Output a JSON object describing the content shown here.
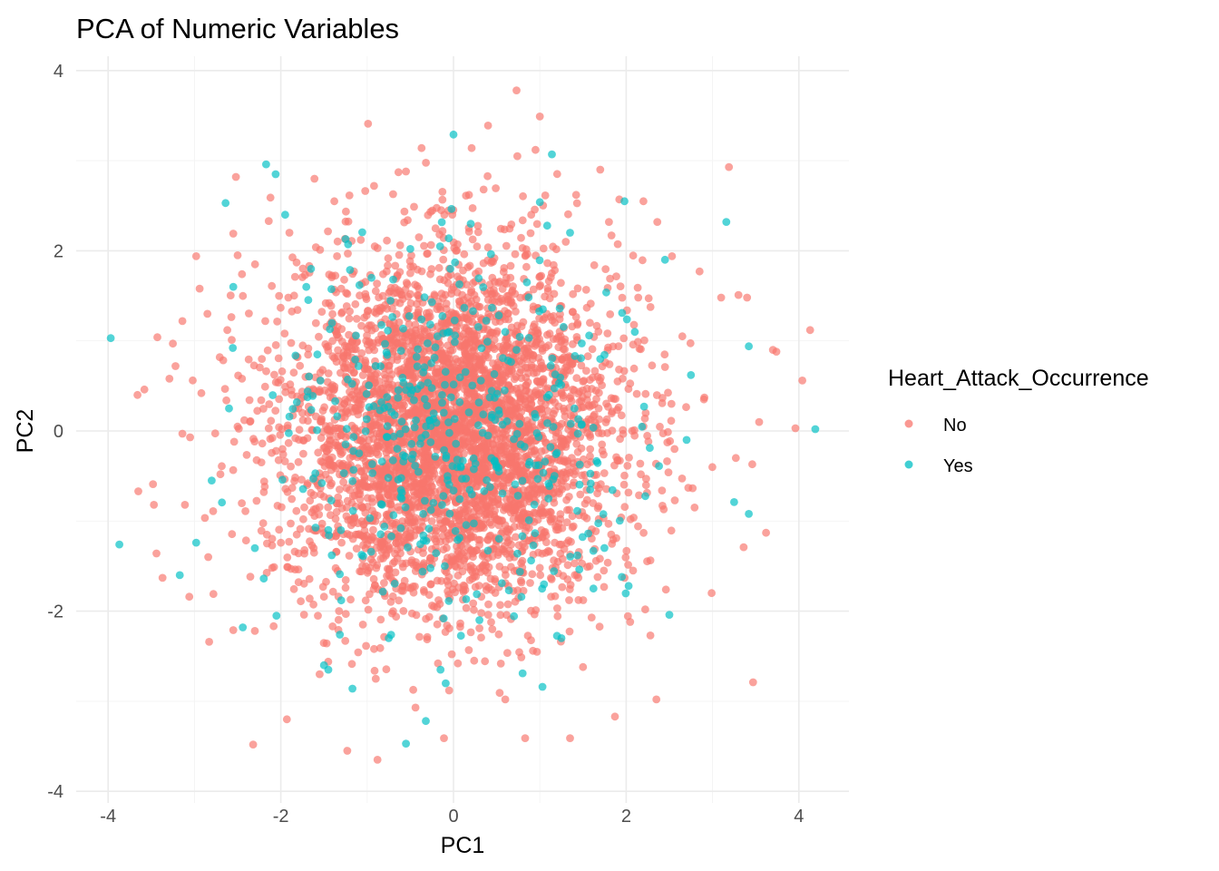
{
  "chart_data": {
    "type": "scatter",
    "title": "PCA of Numeric Variables",
    "xlabel": "PC1",
    "ylabel": "PC2",
    "xlim": [
      -4.2,
      4.6
    ],
    "ylim": [
      -4.1,
      4.2
    ],
    "x_ticks": [
      -4,
      -2,
      0,
      2,
      4
    ],
    "y_ticks": [
      -4,
      -2,
      0,
      2,
      4
    ],
    "grid": true,
    "legend": {
      "title": "Heart_Attack_Occurrence",
      "placement": "right",
      "entries": [
        "No",
        "Yes"
      ]
    },
    "series": [
      {
        "name": "No",
        "color": "#F8766D",
        "points": [
          [
            0.73,
            3.78
          ],
          [
            1.0,
            3.49
          ],
          [
            -0.99,
            3.41
          ],
          [
            0.4,
            3.39
          ],
          [
            0.21,
            3.14
          ],
          [
            0.95,
            3.12
          ],
          [
            0.74,
            3.05
          ],
          [
            -0.37,
            3.14
          ],
          [
            1.7,
            2.9
          ],
          [
            1.92,
            2.57
          ],
          [
            3.19,
            2.93
          ],
          [
            -2.52,
            2.82
          ],
          [
            -1.61,
            2.8
          ],
          [
            -2.12,
            2.59
          ],
          [
            -0.92,
            2.72
          ],
          [
            2.2,
            2.55
          ],
          [
            2.36,
            2.32
          ],
          [
            -2.14,
            2.33
          ],
          [
            -2.55,
            2.19
          ],
          [
            -2.5,
            1.95
          ],
          [
            -2.98,
            1.94
          ],
          [
            -2.94,
            1.58
          ],
          [
            -2.85,
            1.3
          ],
          [
            -3.14,
            1.22
          ],
          [
            -3.25,
            0.97
          ],
          [
            -3.43,
            1.04
          ],
          [
            -3.29,
            0.58
          ],
          [
            -3.22,
            0.72
          ],
          [
            -3.66,
            0.4
          ],
          [
            -3.58,
            0.46
          ],
          [
            -3.05,
            -0.07
          ],
          [
            -3.14,
            -0.03
          ],
          [
            -3.48,
            -0.59
          ],
          [
            -3.65,
            -0.67
          ],
          [
            -3.47,
            -0.82
          ],
          [
            -3.11,
            -0.82
          ],
          [
            -3.44,
            -1.36
          ],
          [
            -3.37,
            -1.63
          ],
          [
            -2.84,
            -1.4
          ],
          [
            -3.06,
            -1.84
          ],
          [
            -2.78,
            -1.81
          ],
          [
            -2.83,
            -2.34
          ],
          [
            -2.55,
            -2.21
          ],
          [
            -2.32,
            -3.48
          ],
          [
            -1.93,
            -3.2
          ],
          [
            -1.23,
            -3.55
          ],
          [
            -0.88,
            -3.65
          ],
          [
            -0.44,
            -3.07
          ],
          [
            -0.11,
            -3.41
          ],
          [
            1.35,
            -3.41
          ],
          [
            0.83,
            -3.41
          ],
          [
            1.87,
            -3.17
          ],
          [
            2.35,
            -2.98
          ],
          [
            3.47,
            -2.79
          ],
          [
            2.99,
            -1.8
          ],
          [
            3.62,
            -1.13
          ],
          [
            3.36,
            -1.29
          ],
          [
            3.27,
            -0.3
          ],
          [
            3.46,
            -0.37
          ],
          [
            3.54,
            0.1
          ],
          [
            3.96,
            0.03
          ],
          [
            4.04,
            0.56
          ],
          [
            3.74,
            0.88
          ],
          [
            3.7,
            0.9
          ],
          [
            4.13,
            1.12
          ],
          [
            3.4,
            1.48
          ],
          [
            3.3,
            1.51
          ],
          [
            3.1,
            1.48
          ],
          [
            2.85,
            1.77
          ],
          [
            2.53,
            1.94
          ],
          [
            -1.18,
            2.11
          ],
          [
            0.8,
            2.03
          ],
          [
            -0.53,
            2.34
          ],
          [
            1.3,
            2.1
          ],
          [
            -1.72,
            1.73
          ],
          [
            1.63,
            1.84
          ],
          [
            -2.18,
            1.22
          ],
          [
            2.14,
            1.48
          ],
          [
            -2.45,
            0.58
          ],
          [
            2.45,
            0.71
          ],
          [
            -2.54,
            -0.12
          ],
          [
            2.56,
            -0.2
          ],
          [
            -2.41,
            -0.89
          ],
          [
            2.42,
            -0.83
          ],
          [
            -2.1,
            -1.52
          ],
          [
            2.08,
            -1.55
          ],
          [
            -1.57,
            -2.05
          ],
          [
            1.6,
            -2.07
          ],
          [
            -0.92,
            -2.42
          ],
          [
            0.92,
            -2.44
          ],
          [
            -0.18,
            -2.58
          ],
          [
            0.24,
            -2.55
          ],
          [
            -0.3,
            1.97
          ],
          [
            0.45,
            1.52
          ],
          [
            -0.85,
            1.33
          ],
          [
            -1.45,
            0.94
          ],
          [
            1.28,
            0.82
          ],
          [
            -1.75,
            0.2
          ],
          [
            1.72,
            -0.15
          ],
          [
            -1.5,
            -0.73
          ],
          [
            1.49,
            -0.9
          ],
          [
            -1.05,
            -1.42
          ],
          [
            1.0,
            -1.52
          ],
          [
            -0.28,
            -1.82
          ],
          [
            0.41,
            -1.74
          ],
          [
            -0.72,
            1.05
          ],
          [
            0.82,
            0.91
          ],
          [
            -1.12,
            0.35
          ],
          [
            1.15,
            0.1
          ],
          [
            -0.95,
            -0.62
          ],
          [
            0.86,
            -0.72
          ],
          [
            -0.2,
            -1.11
          ],
          [
            0.3,
            -1.08
          ],
          [
            -0.35,
            0.48
          ],
          [
            0.38,
            0.32
          ],
          [
            -0.45,
            -0.3
          ],
          [
            0.1,
            -0.45
          ],
          [
            0.0,
            0.05
          ],
          [
            -0.6,
            0.1
          ],
          [
            0.6,
            -0.1
          ],
          [
            1.8,
            2.32
          ],
          [
            -1.9,
            2.2
          ],
          [
            2.28,
            -2.27
          ],
          [
            -2.3,
            -2.22
          ],
          [
            0.6,
            -2.98
          ],
          [
            -0.55,
            2.88
          ],
          [
            2.65,
            1.05
          ],
          [
            -2.7,
            -0.48
          ],
          [
            2.72,
            -0.63
          ],
          [
            -2.62,
            1.12
          ],
          [
            1.42,
            2.62
          ],
          [
            -1.38,
            2.55
          ],
          [
            1.5,
            -2.62
          ],
          [
            -1.55,
            -2.7
          ],
          [
            2.9,
            0.35
          ],
          [
            -2.92,
            0.42
          ],
          [
            0.18,
            2.62
          ],
          [
            -0.05,
            -2.88
          ],
          [
            2.46,
            -1.76
          ],
          [
            -2.45,
            1.74
          ],
          [
            1.08,
            1.3
          ],
          [
            -1.16,
            -1.02
          ],
          [
            0.66,
            1.7
          ],
          [
            -0.7,
            -2.0
          ],
          [
            1.9,
            0.55
          ],
          [
            -1.98,
            -0.2
          ],
          [
            1.25,
            -1.26
          ],
          [
            -1.3,
            1.58
          ],
          [
            0.05,
            1.25
          ],
          [
            -0.1,
            -1.55
          ],
          [
            2.2,
            0.05
          ],
          [
            -2.22,
            0.8
          ],
          [
            0.9,
            2.4
          ],
          [
            -0.9,
            -2.75
          ],
          [
            1.58,
            1.2
          ],
          [
            -1.62,
            -1.3
          ],
          [
            2.05,
            -0.98
          ],
          [
            -2.02,
            1.5
          ],
          [
            0.45,
            -2.2
          ],
          [
            -0.4,
            2.15
          ]
        ]
      },
      {
        "name": "Yes",
        "color": "#00BFC4",
        "points": [
          [
            -3.97,
            1.03
          ],
          [
            -3.87,
            -1.26
          ],
          [
            -3.17,
            -1.6
          ],
          [
            -2.98,
            -1.24
          ],
          [
            -2.44,
            -2.18
          ],
          [
            -2.64,
            2.53
          ],
          [
            -2.17,
            2.96
          ],
          [
            -2.06,
            2.85
          ],
          [
            -1.25,
            2.13
          ],
          [
            0.0,
            3.29
          ],
          [
            1.14,
            3.07
          ],
          [
            1.0,
            2.54
          ],
          [
            1.98,
            2.55
          ],
          [
            3.16,
            2.32
          ],
          [
            3.42,
            0.94
          ],
          [
            4.19,
            0.02
          ],
          [
            3.25,
            -0.79
          ],
          [
            3.42,
            -0.92
          ],
          [
            2.5,
            -2.04
          ],
          [
            1.03,
            -2.84
          ],
          [
            0.8,
            -2.69
          ],
          [
            -0.32,
            -3.22
          ],
          [
            -0.55,
            -3.47
          ],
          [
            -1.5,
            -2.6
          ],
          [
            -1.45,
            -2.65
          ],
          [
            -1.17,
            -2.86
          ],
          [
            -1.3,
            -1.88
          ],
          [
            0.56,
            -1.69
          ],
          [
            -0.8,
            -1.06
          ],
          [
            0.1,
            -0.53
          ],
          [
            0.73,
            0.9
          ],
          [
            -0.25,
            1.43
          ],
          [
            1.23,
            1.36
          ],
          [
            -1.9,
            0.16
          ],
          [
            2.38,
            -0.39
          ],
          [
            -1.6,
            -0.47
          ],
          [
            1.62,
            -1.33
          ],
          [
            -2.6,
            0.25
          ],
          [
            2.7,
            -0.1
          ],
          [
            -0.5,
            2.02
          ],
          [
            0.85,
            1.65
          ],
          [
            -1.1,
            0.72
          ],
          [
            0.4,
            -0.05
          ],
          [
            -0.05,
            1.1
          ],
          [
            1.4,
            0.25
          ],
          [
            -1.65,
            1.8
          ],
          [
            2.1,
            1.1
          ],
          [
            -2.3,
            -1.3
          ],
          [
            1.95,
            -1.62
          ],
          [
            -0.75,
            -2.3
          ],
          [
            0.3,
            -2.1
          ],
          [
            -1.45,
            -1.1
          ],
          [
            1.1,
            -0.75
          ],
          [
            -0.35,
            0.65
          ],
          [
            0.6,
            1.1
          ],
          [
            -2.55,
            1.6
          ],
          [
            2.75,
            0.62
          ],
          [
            -1.95,
            2.4
          ],
          [
            1.35,
            2.2
          ],
          [
            -0.15,
            -2.65
          ],
          [
            1.25,
            -2.3
          ],
          [
            -2.05,
            -2.05
          ],
          [
            2.45,
            1.9
          ],
          [
            -0.95,
            1.7
          ],
          [
            0.2,
            2.3
          ],
          [
            -1.25,
            -0.15
          ],
          [
            0.95,
            0.15
          ],
          [
            -0.6,
            -0.75
          ],
          [
            1.7,
            0.8
          ],
          [
            -2.8,
            -0.55
          ]
        ]
      }
    ]
  }
}
